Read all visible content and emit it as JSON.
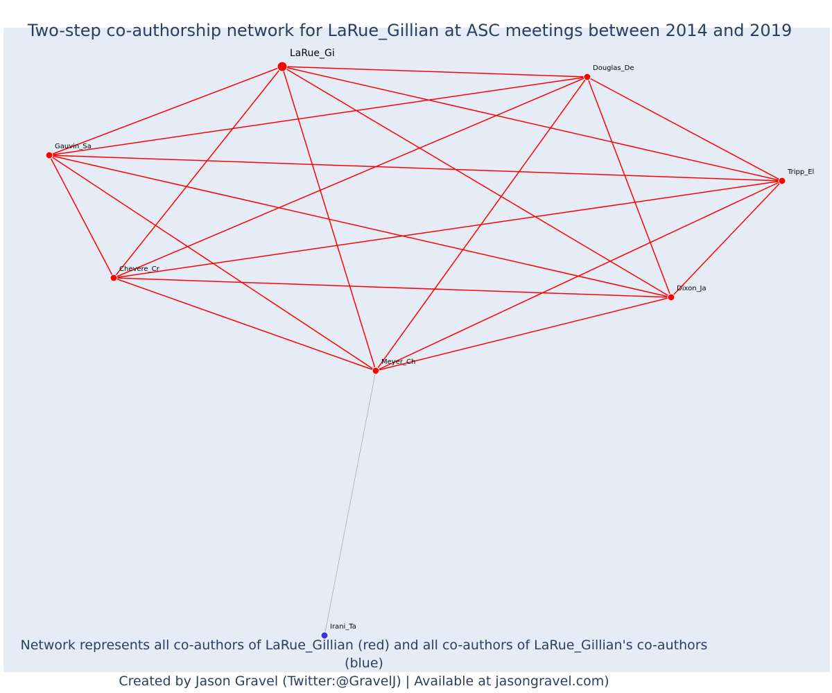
{
  "title": "Two-step co-authorship network for LaRue_Gillian at ASC meetings between 2014 and 2019",
  "caption": {
    "line1": "Network represents all co-authors of LaRue_Gillian (red) and all co-authors of LaRue_Gillian's co-authors (blue)",
    "line2": "Created by Jason Gravel (Twitter:@GravelJ) | Available at jasongravel.com)"
  },
  "colors": {
    "background": "#e5ecf6",
    "first_degree": "#ff0000",
    "second_degree": "#3333ee",
    "second_edge": "#aaaaaa"
  },
  "network": {
    "nodes": [
      {
        "id": "LaRue_Gi",
        "label": "LaRue_Gi",
        "group": "ego"
      },
      {
        "id": "Douglas_De",
        "label": "Douglas_De",
        "group": "coauthor"
      },
      {
        "id": "Gauvin_Sa",
        "label": "Gauvin_Sa",
        "group": "coauthor"
      },
      {
        "id": "Tripp_El",
        "label": "Tripp_El",
        "group": "coauthor"
      },
      {
        "id": "Chevere_Cr",
        "label": "Chevere_Cr",
        "group": "coauthor"
      },
      {
        "id": "Dixon_Ja",
        "label": "Dixon_Ja",
        "group": "coauthor"
      },
      {
        "id": "Meyer_Ch",
        "label": "Meyer_Ch",
        "group": "coauthor"
      },
      {
        "id": "Irani_Ta",
        "label": "Irani_Ta",
        "group": "second"
      }
    ],
    "edges": [
      [
        "LaRue_Gi",
        "Douglas_De"
      ],
      [
        "LaRue_Gi",
        "Gauvin_Sa"
      ],
      [
        "LaRue_Gi",
        "Tripp_El"
      ],
      [
        "LaRue_Gi",
        "Chevere_Cr"
      ],
      [
        "LaRue_Gi",
        "Dixon_Ja"
      ],
      [
        "LaRue_Gi",
        "Meyer_Ch"
      ],
      [
        "Douglas_De",
        "Gauvin_Sa"
      ],
      [
        "Douglas_De",
        "Tripp_El"
      ],
      [
        "Douglas_De",
        "Chevere_Cr"
      ],
      [
        "Douglas_De",
        "Dixon_Ja"
      ],
      [
        "Douglas_De",
        "Meyer_Ch"
      ],
      [
        "Gauvin_Sa",
        "Tripp_El"
      ],
      [
        "Gauvin_Sa",
        "Chevere_Cr"
      ],
      [
        "Gauvin_Sa",
        "Dixon_Ja"
      ],
      [
        "Gauvin_Sa",
        "Meyer_Ch"
      ],
      [
        "Tripp_El",
        "Chevere_Cr"
      ],
      [
        "Tripp_El",
        "Dixon_Ja"
      ],
      [
        "Tripp_El",
        "Meyer_Ch"
      ],
      [
        "Chevere_Cr",
        "Dixon_Ja"
      ],
      [
        "Chevere_Cr",
        "Meyer_Ch"
      ],
      [
        "Dixon_Ja",
        "Meyer_Ch"
      ],
      [
        "Meyer_Ch",
        "Irani_Ta"
      ]
    ]
  }
}
